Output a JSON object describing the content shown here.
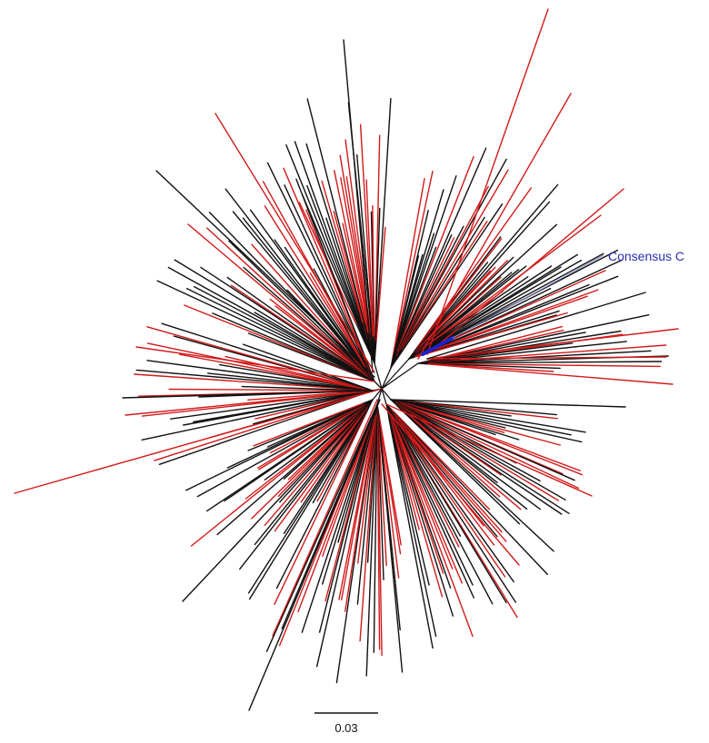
{
  "figure": {
    "highlight_label": "Consensus C",
    "scale_bar_label": "0.03"
  },
  "colors": {
    "background": "#ffffff",
    "branch_black": "#111111",
    "branch_red": "#d11a1a",
    "highlight_blue": "#1a22c8",
    "highlight_text": "#2a2fb0"
  }
}
